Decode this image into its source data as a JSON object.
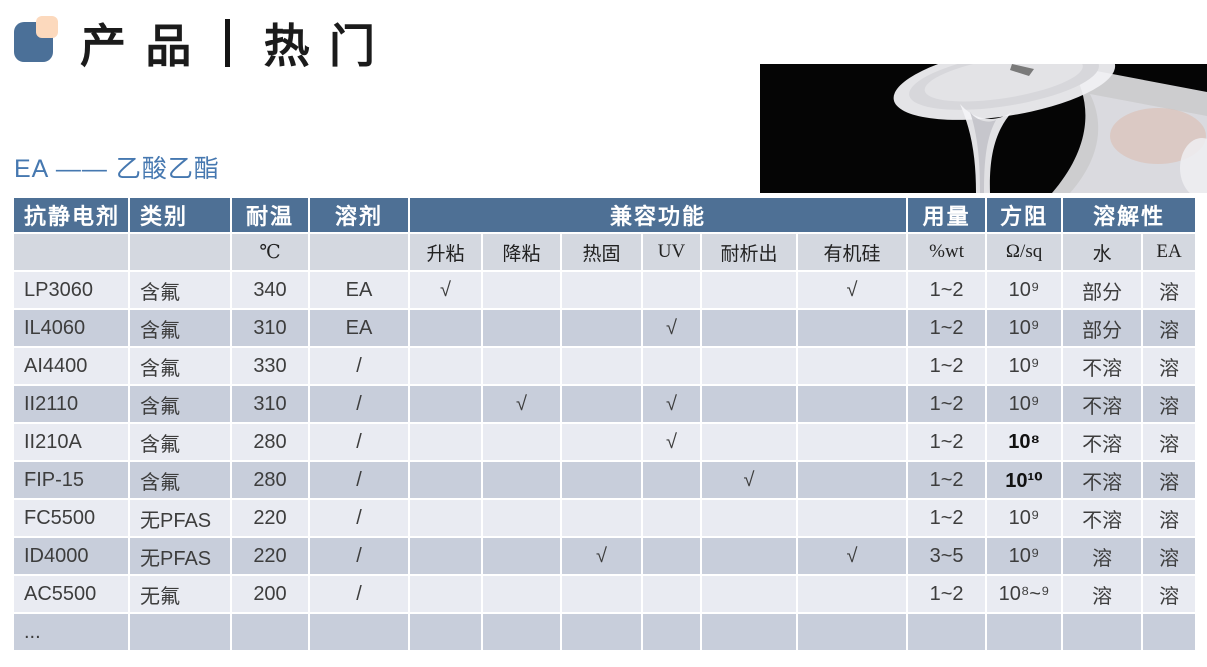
{
  "colors": {
    "header_bg": "#4e7095",
    "subheader_bg": "#d4d8e0",
    "row_light": "#e9ebf2",
    "row_dark": "#c8cedb",
    "accent_blue": "#4678b0",
    "logo_blue": "#4b7098",
    "logo_peach": "#fcd9bd",
    "title_text": "#1b1b1b"
  },
  "header": {
    "title_left": "产品",
    "title_right": "热门"
  },
  "section": {
    "label": "EA —— 乙酸乙酯"
  },
  "photo": {
    "description": "clear liquid pouring from translucent cup on black background"
  },
  "table": {
    "header_groups": [
      {
        "label": "抗静电剂",
        "span": 1
      },
      {
        "label": "类别",
        "span": 1
      },
      {
        "label": "耐温",
        "span": 1
      },
      {
        "label": "溶剂",
        "span": 1
      },
      {
        "label": "兼容功能",
        "span": 6
      },
      {
        "label": "用量",
        "span": 1
      },
      {
        "label": "方阻",
        "span": 1
      },
      {
        "label": "溶解性",
        "span": 2
      }
    ],
    "subheaders": [
      "",
      "",
      "℃",
      "",
      "升粘",
      "降粘",
      "热固",
      "UV",
      "耐析出",
      "有机硅",
      "%wt",
      "Ω/sq",
      "水",
      "EA"
    ],
    "rows": [
      {
        "cells": [
          "LP3060",
          "含氟",
          "340",
          "EA",
          "√",
          "",
          "",
          "",
          "",
          "√",
          "1~2",
          "10⁹",
          "部分",
          "溶"
        ]
      },
      {
        "cells": [
          "IL4060",
          "含氟",
          "310",
          "EA",
          "",
          "",
          "",
          "√",
          "",
          "",
          "1~2",
          "10⁹",
          "部分",
          "溶"
        ]
      },
      {
        "cells": [
          "AI4400",
          "含氟",
          "330",
          "/",
          "",
          "",
          "",
          "",
          "",
          "",
          "1~2",
          "10⁹",
          "不溶",
          "溶"
        ]
      },
      {
        "cells": [
          "II2110",
          "含氟",
          "310",
          "/",
          "",
          "√",
          "",
          "√",
          "",
          "",
          "1~2",
          "10⁹",
          "不溶",
          "溶"
        ]
      },
      {
        "cells": [
          "II210A",
          "含氟",
          "280",
          "/",
          "",
          "",
          "",
          "√",
          "",
          "",
          "1~2",
          "10⁸",
          "不溶",
          "溶"
        ],
        "bold_cols": [
          11
        ]
      },
      {
        "cells": [
          "FIP-15",
          "含氟",
          "280",
          "/",
          "",
          "",
          "",
          "",
          "√",
          "",
          "1~2",
          "10¹⁰",
          "不溶",
          "溶"
        ],
        "bold_cols": [
          11
        ]
      },
      {
        "cells": [
          "FC5500",
          "无PFAS",
          "220",
          "/",
          "",
          "",
          "",
          "",
          "",
          "",
          "1~2",
          "10⁹",
          "不溶",
          "溶"
        ]
      },
      {
        "cells": [
          "ID4000",
          "无PFAS",
          "220",
          "/",
          "",
          "",
          "√",
          "",
          "",
          "√",
          "3~5",
          "10⁹",
          "溶",
          "溶"
        ]
      },
      {
        "cells": [
          "AC5500",
          "无氟",
          "200",
          "/",
          "",
          "",
          "",
          "",
          "",
          "",
          "1~2",
          "10⁸~⁹",
          "溶",
          "溶"
        ]
      },
      {
        "cells": [
          "...",
          "",
          "",
          "",
          "",
          "",
          "",
          "",
          "",
          "",
          "",
          "",
          "",
          ""
        ]
      }
    ]
  }
}
